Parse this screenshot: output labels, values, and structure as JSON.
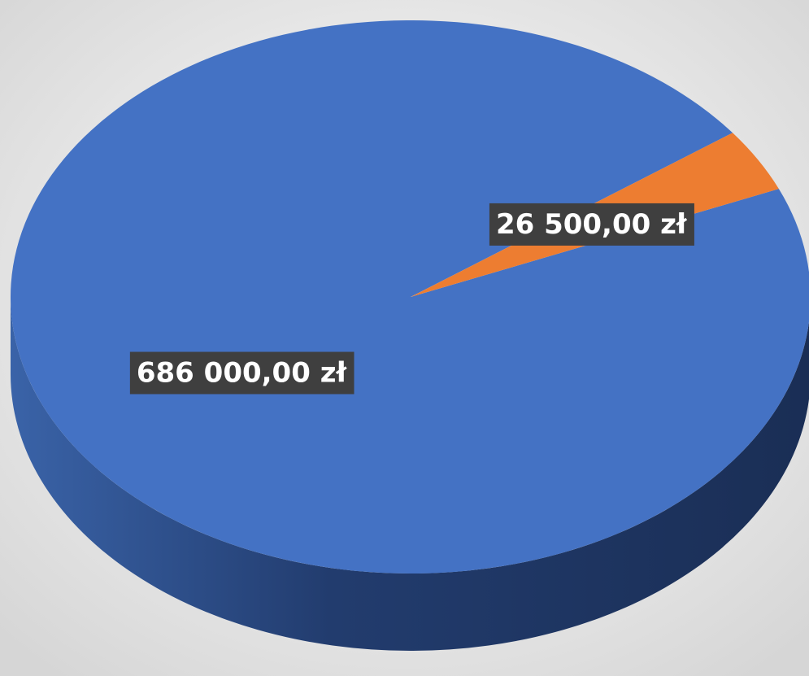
{
  "chart_data": {
    "type": "pie",
    "categories": [
      null,
      null
    ],
    "values": [
      686000,
      26500
    ],
    "value_labels": [
      "686 000,00 zł",
      "26 500,00 zł"
    ],
    "colors": [
      "#4472c4",
      "#ed7d31"
    ]
  }
}
